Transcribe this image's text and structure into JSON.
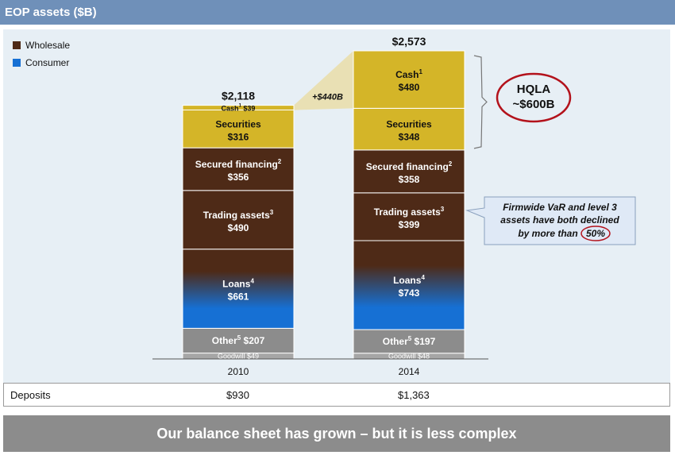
{
  "header": {
    "title": "EOP assets ($B)"
  },
  "legend": [
    {
      "label": "Wholesale",
      "color": "#4e2a17"
    },
    {
      "label": "Consumer",
      "color": "#1670d4"
    }
  ],
  "callouts": {
    "growth": "+$440B",
    "hqla_line1": "HQLA",
    "hqla_line2": "~$600B",
    "var_line1": "Firmwide VaR and level 3",
    "var_line2": "assets have both declined",
    "var_line3_prefix": "by more than ",
    "var_line3_value": "50%"
  },
  "deposits": {
    "label": "Deposits",
    "values": [
      "$930",
      "$1,363"
    ]
  },
  "footer": {
    "text": "Our balance sheet has grown – but it is less complex"
  },
  "colors": {
    "cash_securities": "#d4b528",
    "wholesale": "#4e2a17",
    "consumer": "#1670d4",
    "other": "#8c8c8c",
    "header": "#6f90b9"
  },
  "chart_data": {
    "type": "bar",
    "stacked": true,
    "categories": [
      "2010",
      "2014"
    ],
    "totals": [
      "$2,118",
      "$2,573"
    ],
    "total_values": [
      2118,
      2573
    ],
    "ylim": [
      0,
      2573
    ],
    "segments": [
      {
        "name": "Goodwill",
        "sup": "",
        "values": [
          49,
          48
        ],
        "labels": [
          "Goodwill $49",
          "Goodwill $48"
        ],
        "color": "#a6a6a6",
        "style": "small"
      },
      {
        "name": "Other",
        "sup": "5",
        "values": [
          207,
          197
        ],
        "labels": [
          "$207",
          "$197"
        ],
        "color": "#8c8c8c",
        "style": "inline"
      },
      {
        "name": "Loans",
        "sup": "4",
        "values": [
          661,
          743
        ],
        "labels": [
          "$661",
          "$743"
        ],
        "color": "gradient",
        "style": "stacked"
      },
      {
        "name": "Trading assets",
        "sup": "3",
        "values": [
          490,
          399
        ],
        "labels": [
          "$490",
          "$399"
        ],
        "color": "#4e2a17",
        "style": "stacked"
      },
      {
        "name": "Secured  financing",
        "sup": "2",
        "values": [
          356,
          358
        ],
        "labels": [
          "$356",
          "$358"
        ],
        "color": "#4e2a17",
        "style": "stacked"
      },
      {
        "name": "Securities",
        "sup": "",
        "values": [
          316,
          348
        ],
        "labels": [
          "$316",
          "$348"
        ],
        "color": "#d4b528",
        "style": "stacked"
      },
      {
        "name": "Cash",
        "sup": "1",
        "values": [
          39,
          480
        ],
        "labels": [
          "$39",
          "$480"
        ],
        "color": "#d4b528",
        "style": "stacked"
      }
    ]
  }
}
